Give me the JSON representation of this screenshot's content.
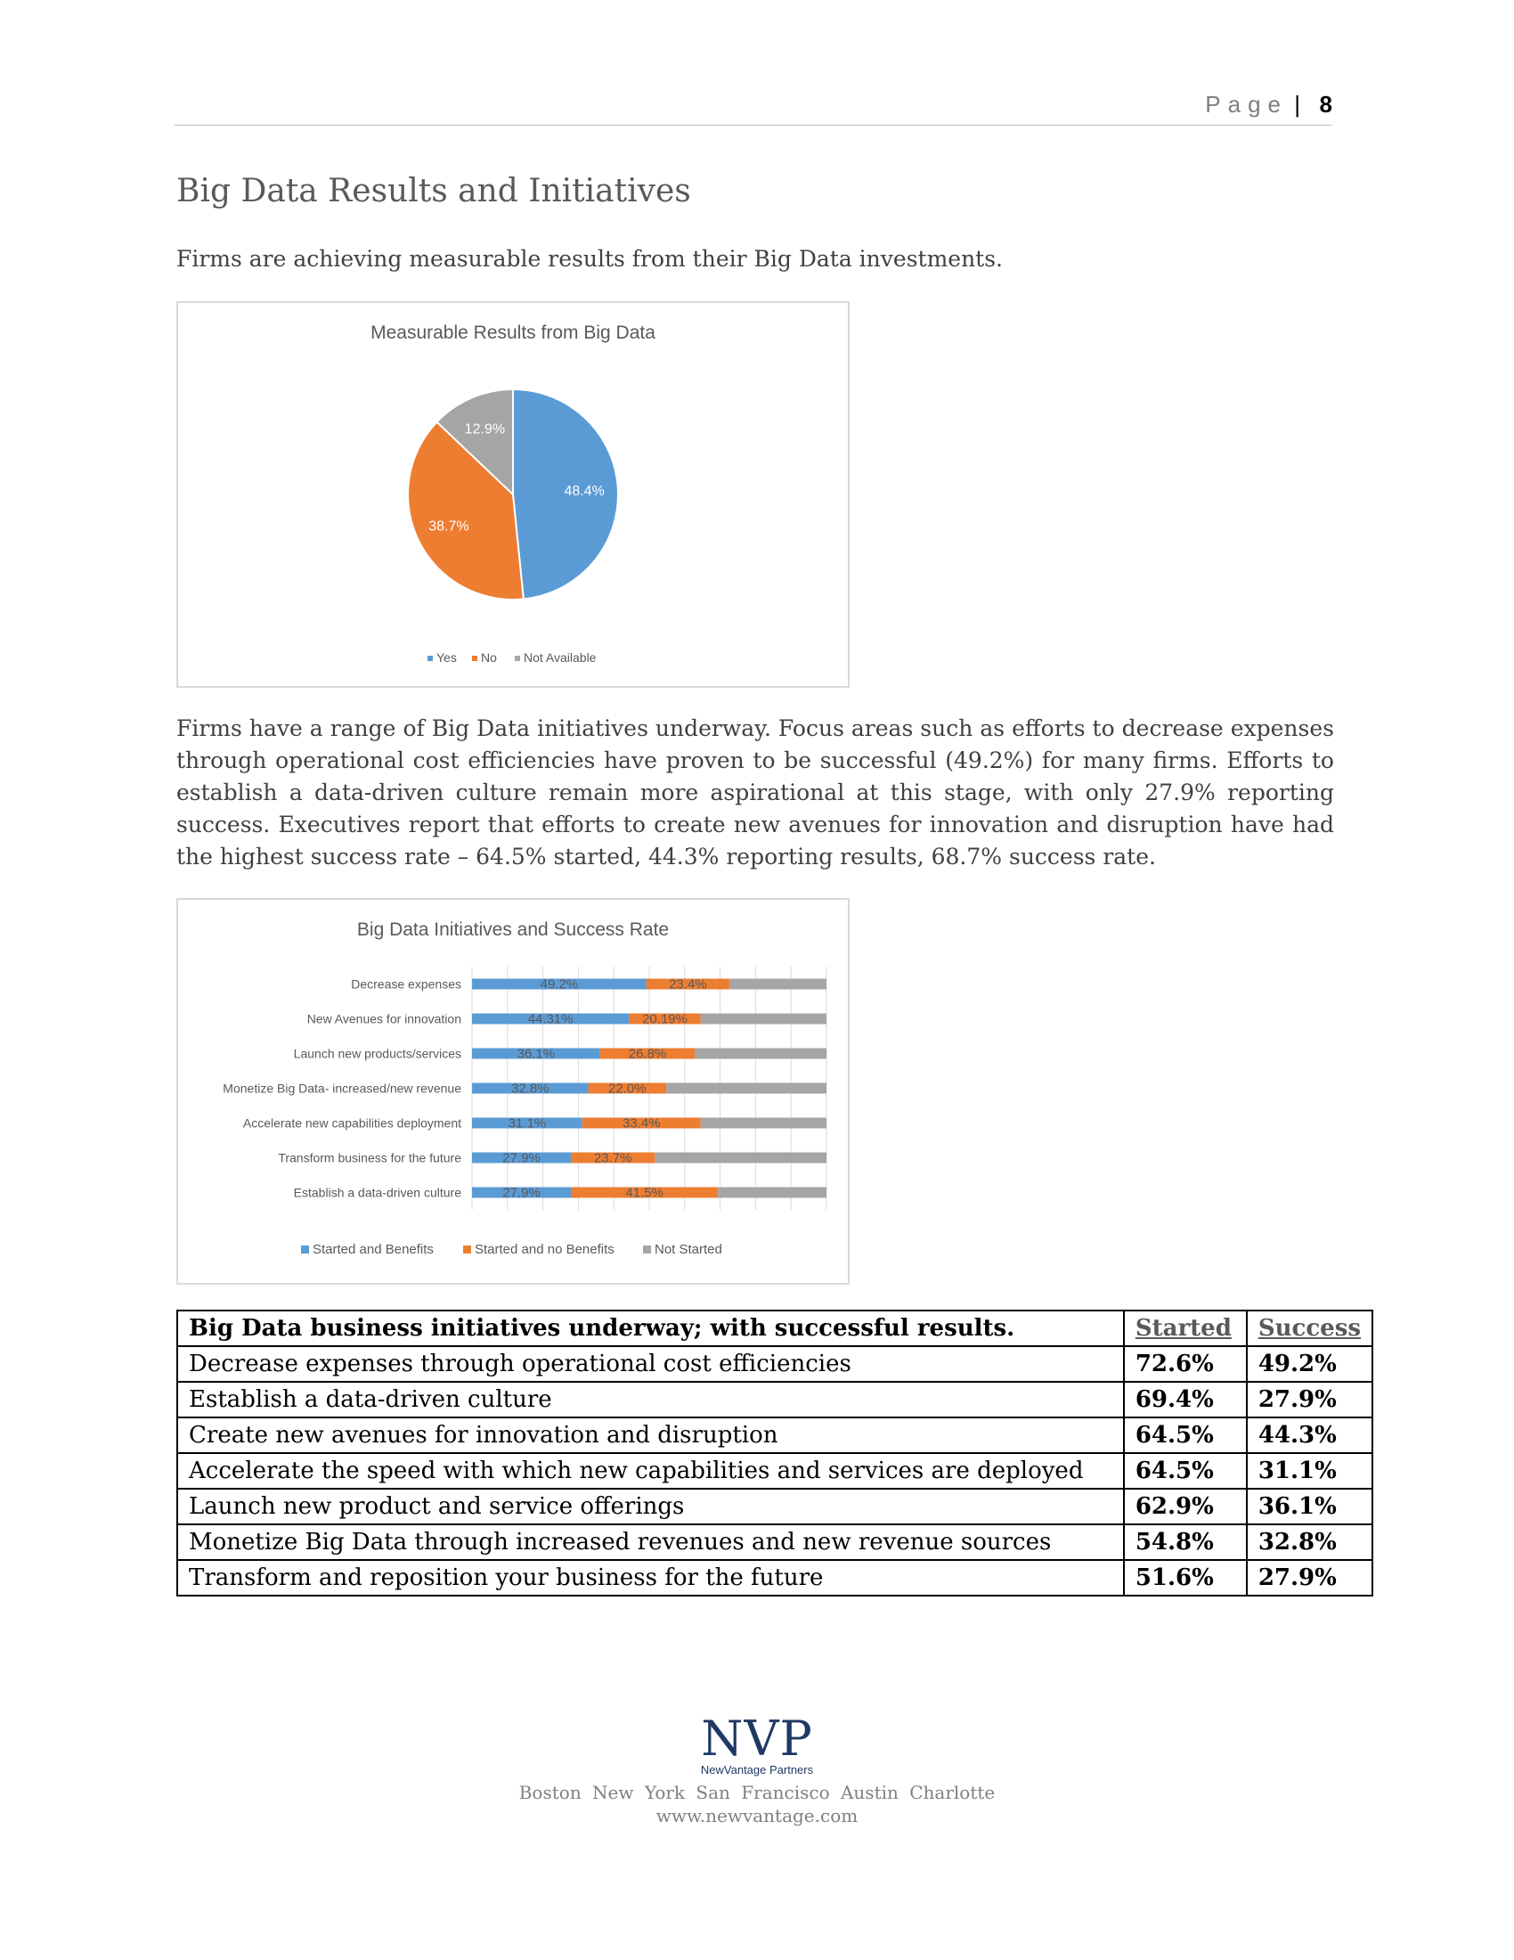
{
  "header": {
    "page_label": "Page",
    "page_sep": "|",
    "page_number": "8"
  },
  "section_title": "Big Data Results and Initiatives",
  "intro": "Firms are achieving measurable results from their Big Data investments.",
  "body_paragraph": "Firms have a range of Big Data initiatives underway.  Focus areas such as efforts to decrease expenses through operational cost efficiencies have proven to be successful (49.2%) for many firms.  Efforts to establish a data-driven culture remain more aspirational at this stage, with only 27.9% reporting success. Executives report that efforts to create new avenues for innovation and disruption have had the highest success rate – 64.5% started, 44.3% reporting results, 68.7% success rate.",
  "chart_data": [
    {
      "type": "pie",
      "title": "Measurable Results from Big Data",
      "labels": [
        "Yes",
        "No",
        "Not Available"
      ],
      "values": [
        48.4,
        38.7,
        12.9
      ],
      "value_labels": [
        "48.4%",
        "38.7%",
        "12.9%"
      ],
      "colors": [
        "#5b9bd5",
        "#ed7d31",
        "#a5a5a5"
      ],
      "legend_position": "bottom"
    },
    {
      "type": "bar",
      "orientation": "horizontal",
      "stacked": true,
      "title": "Big Data Initiatives and Success Rate",
      "categories": [
        "Decrease expenses",
        "New Avenues for innovation",
        "Launch new products/services",
        "Monetize Big Data- increased/new revenue",
        "Accelerate new capabilities deployment",
        "Transform business for the future",
        "Establish  a data-driven culture"
      ],
      "series": [
        {
          "name": "Started and Benefits",
          "color": "#5b9bd5",
          "values": [
            49.2,
            44.31,
            36.1,
            32.8,
            31.1,
            27.9,
            27.9
          ],
          "labels": [
            "49.2%",
            "44.31%",
            "36.1%",
            "32.8%",
            "31.1%",
            "27.9%",
            "27.9%"
          ]
        },
        {
          "name": "Started and no Benefits",
          "color": "#ed7d31",
          "values": [
            23.4,
            20.19,
            26.8,
            22.0,
            33.4,
            23.7,
            41.5
          ],
          "labels": [
            "23.4%",
            "20.19%",
            "26.8%",
            "22.0%",
            "33.4%",
            "23.7%",
            "41.5%"
          ]
        },
        {
          "name": "Not Started",
          "color": "#a5a5a5",
          "values": [
            27.4,
            35.5,
            37.1,
            45.2,
            35.5,
            48.4,
            30.6
          ]
        }
      ],
      "xlim": [
        0,
        100
      ],
      "grid": true,
      "legend_position": "bottom"
    }
  ],
  "table": {
    "headers": [
      "Big Data business initiatives underway; with successful results.",
      "Started",
      "Success"
    ],
    "rows": [
      [
        "Decrease expenses through operational cost efficiencies",
        "72.6%",
        "49.2%"
      ],
      [
        "Establish a data-driven culture",
        "69.4%",
        "27.9%"
      ],
      [
        "Create new avenues for innovation and disruption",
        "64.5%",
        "44.3%"
      ],
      [
        "Accelerate the speed with which new capabilities and services are deployed",
        "64.5%",
        "31.1%"
      ],
      [
        "Launch new product and service offerings",
        "62.9%",
        "36.1%"
      ],
      [
        "Monetize Big Data through increased revenues and new revenue sources",
        "54.8%",
        "32.8%"
      ],
      [
        "Transform and reposition your business for the future",
        "51.6%",
        "27.9%"
      ]
    ]
  },
  "footer": {
    "logo": "NVP",
    "logo_subtitle": "NewVantage Partners",
    "cities": "Boston  New York  San Francisco  Austin  Charlotte",
    "website": "www.newvantage.com"
  }
}
